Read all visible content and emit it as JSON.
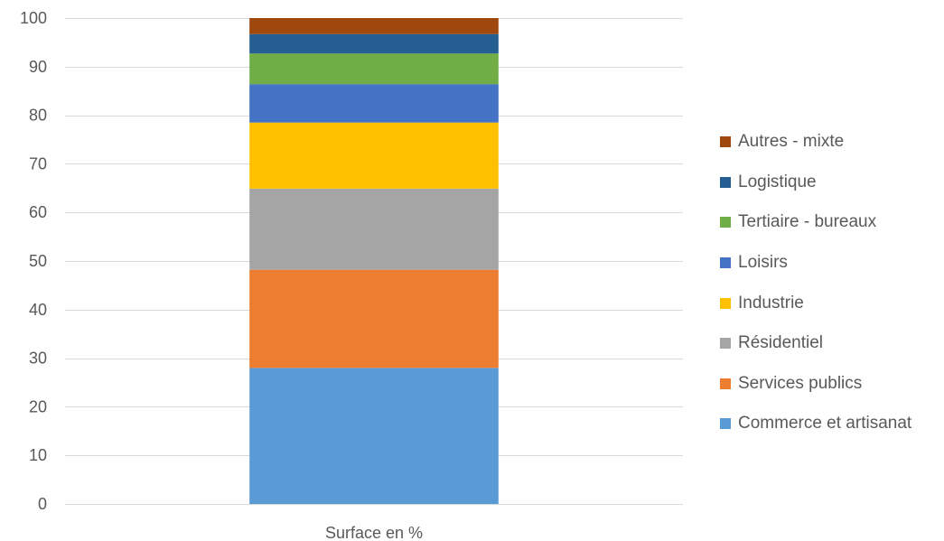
{
  "chart_data": {
    "type": "bar",
    "stacked": true,
    "categories": [
      "Surface en %"
    ],
    "ylim": [
      0,
      100
    ],
    "yticks": [
      0,
      10,
      20,
      30,
      40,
      50,
      60,
      70,
      80,
      90,
      100
    ],
    "grid": true,
    "legend_position": "right",
    "series": [
      {
        "name": "Commerce et artisanat",
        "values": [
          28.0
        ],
        "color": "#5b9bd5"
      },
      {
        "name": "Services publics",
        "values": [
          20.2
        ],
        "color": "#ed7d31"
      },
      {
        "name": "Résidentiel",
        "values": [
          16.7
        ],
        "color": "#a5a5a5"
      },
      {
        "name": "Industrie",
        "values": [
          13.6
        ],
        "color": "#ffc000"
      },
      {
        "name": "Loisirs",
        "values": [
          7.9
        ],
        "color": "#4472c4"
      },
      {
        "name": "Tertiaire - bureaux",
        "values": [
          6.3
        ],
        "color": "#70ad47"
      },
      {
        "name": "Logistique",
        "values": [
          4.0
        ],
        "color": "#255e91"
      },
      {
        "name": "Autres - mixte",
        "values": [
          3.3
        ],
        "color": "#9e480e"
      }
    ]
  }
}
